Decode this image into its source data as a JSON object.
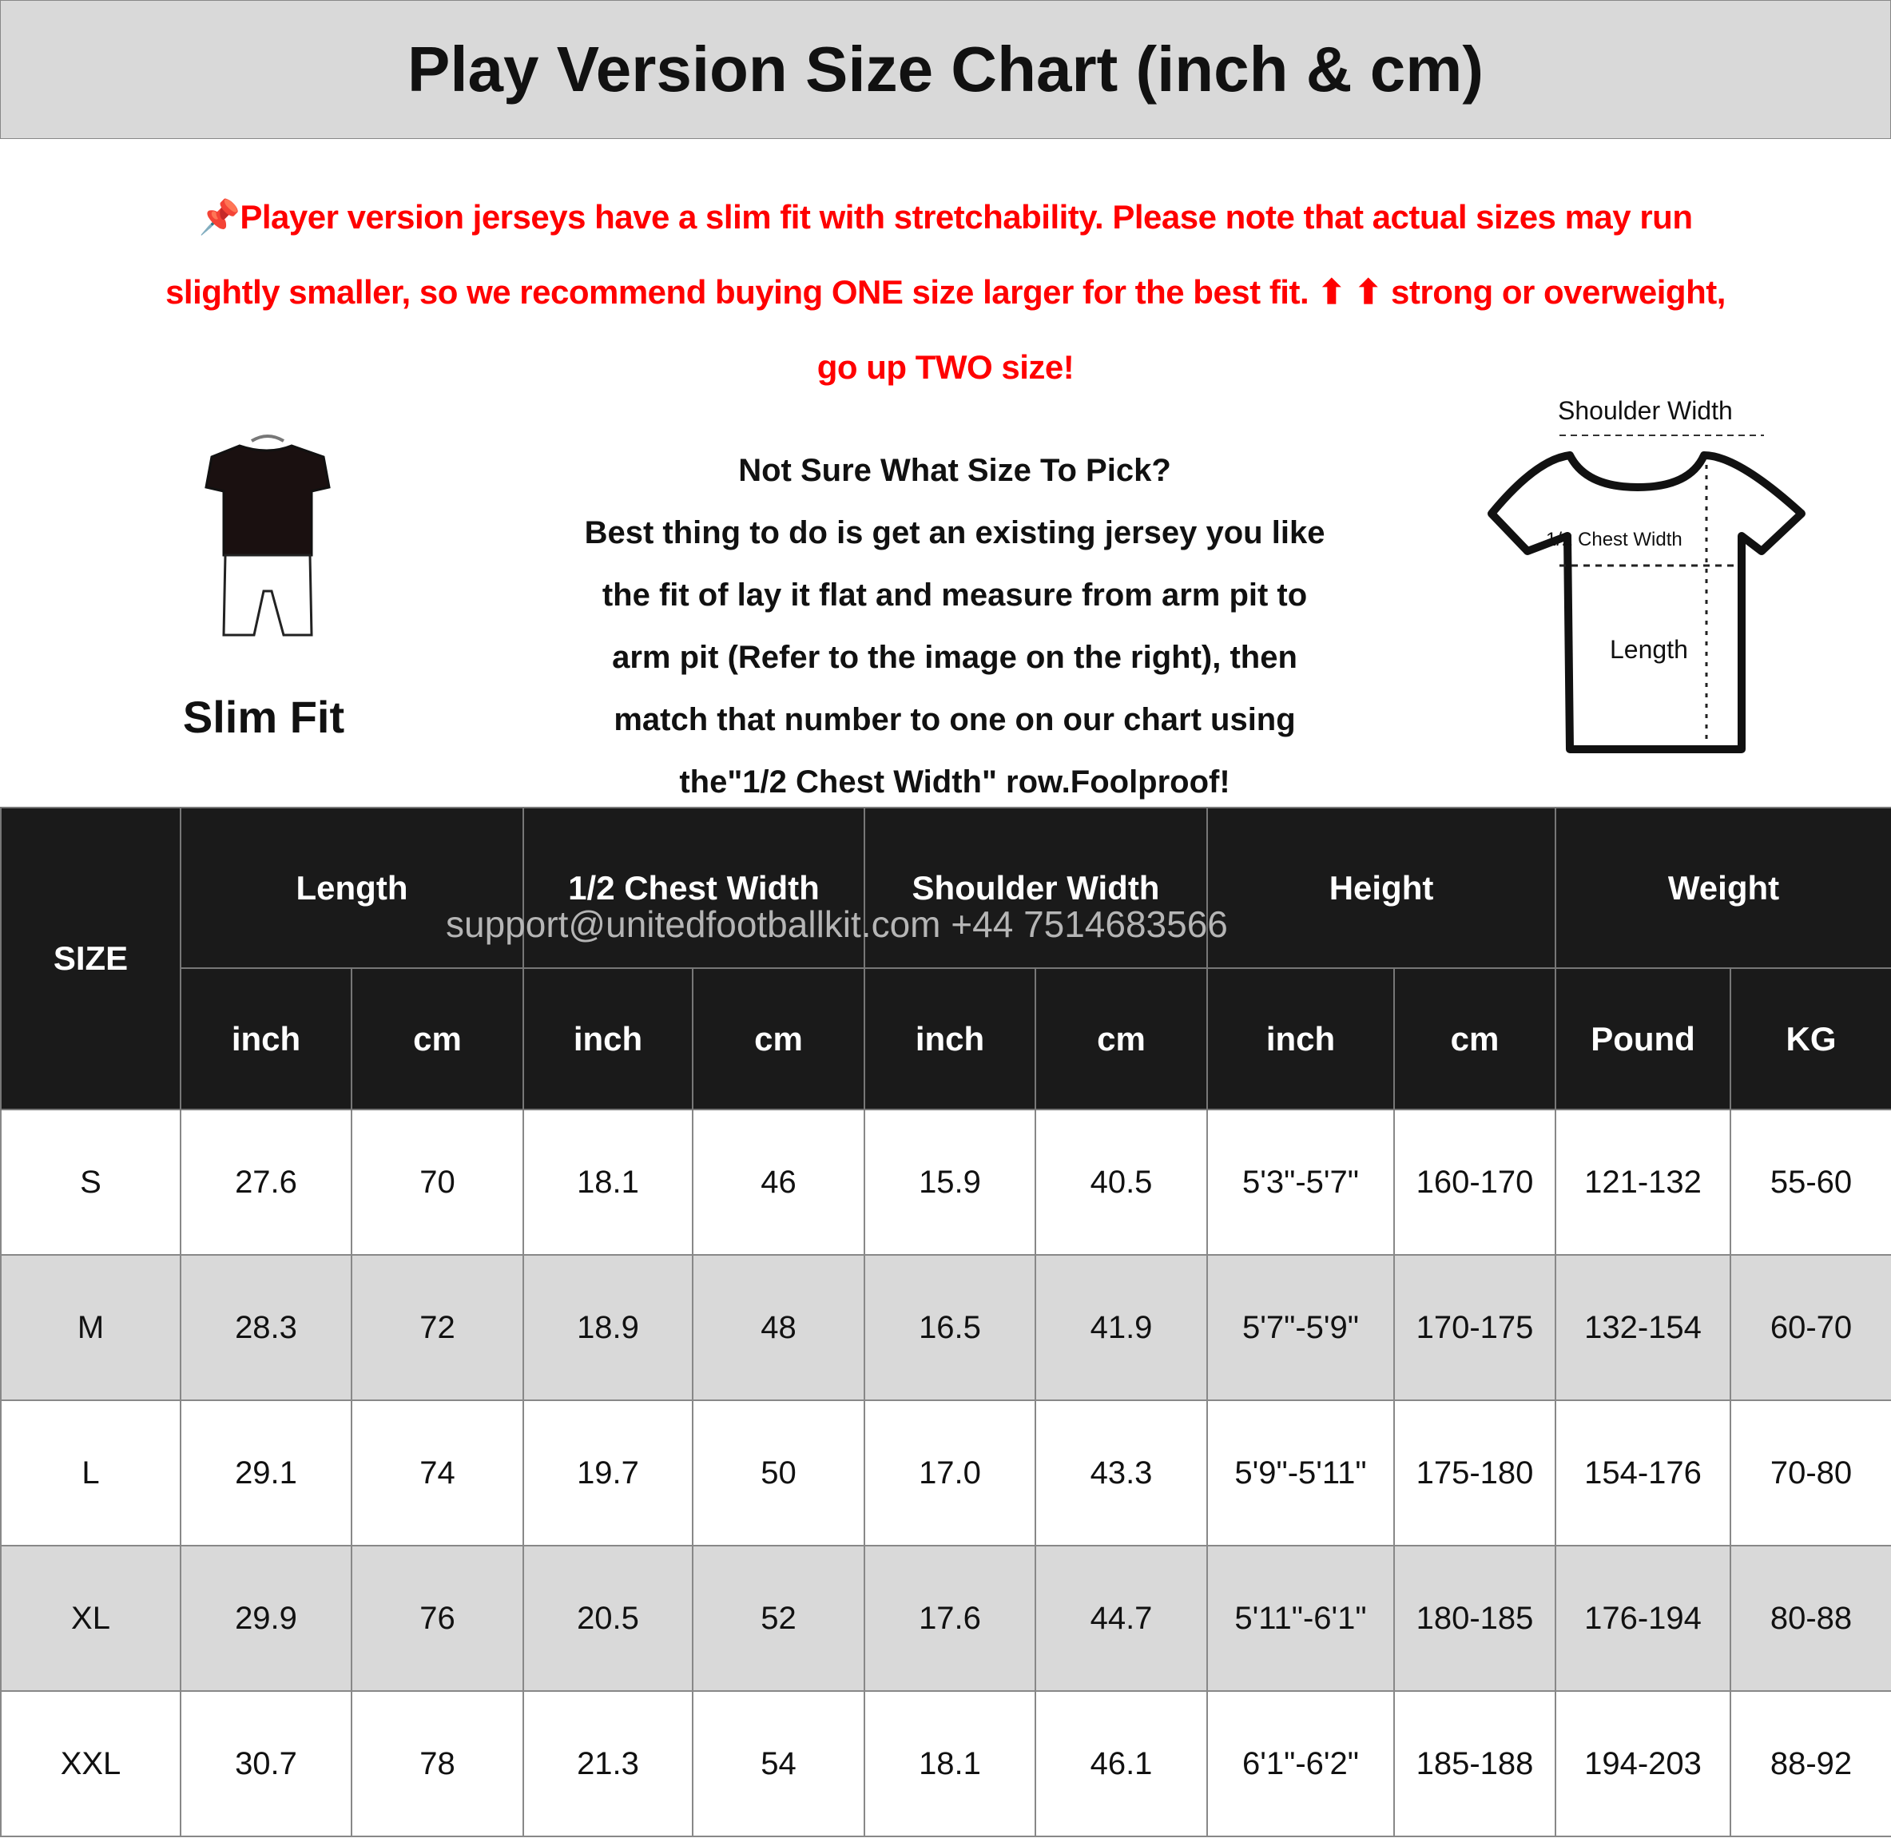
{
  "title": "Play Version Size Chart (inch & cm)",
  "note": {
    "icon": "pushpin-icon",
    "color": "#ff0000",
    "lines": [
      "Player version jerseys have a slim fit with stretchability. Please note that actual sizes may run",
      "slightly smaller, so we recommend buying ONE size larger for the best fit. ⬆ ⬆ strong or overweight,",
      "go up TWO size!"
    ]
  },
  "fit": {
    "label": "Slim Fit",
    "icon": "slim-fit-jersey-icon"
  },
  "guide": {
    "heading": "Not Sure What Size To Pick?",
    "lines": [
      "Best thing to do is get an existing jersey you like",
      "the fit of lay it flat and measure from arm pit to",
      "arm pit (Refer to the image on the right), then",
      "match that number to one on our chart using",
      "the\"1/2 Chest Width\" row.Foolproof!"
    ]
  },
  "diagram": {
    "shoulder_label": "Shoulder Width",
    "chest_label": "1/2 Chest Width",
    "length_label": "Length"
  },
  "watermark": "support@unitedfootballkit.com   +44 7514683566",
  "table": {
    "size_header": "SIZE",
    "groups": [
      "Length",
      "1/2 Chest Width",
      "Shoulder Width",
      "Height",
      "Weight"
    ],
    "units": [
      "inch",
      "cm",
      "inch",
      "cm",
      "inch",
      "cm",
      "inch",
      "cm",
      "Pound",
      "KG"
    ],
    "rows": [
      [
        "S",
        "27.6",
        "70",
        "18.1",
        "46",
        "15.9",
        "40.5",
        "5'3\"-5'7\"",
        "160-170",
        "121-132",
        "55-60"
      ],
      [
        "M",
        "28.3",
        "72",
        "18.9",
        "48",
        "16.5",
        "41.9",
        "5'7\"-5'9\"",
        "170-175",
        "132-154",
        "60-70"
      ],
      [
        "L",
        "29.1",
        "74",
        "19.7",
        "50",
        "17.0",
        "43.3",
        "5'9\"-5'11\"",
        "175-180",
        "154-176",
        "70-80"
      ],
      [
        "XL",
        "29.9",
        "76",
        "20.5",
        "52",
        "17.6",
        "44.7",
        "5'11\"-6'1\"",
        "180-185",
        "176-194",
        "80-88"
      ],
      [
        "XXL",
        "30.7",
        "78",
        "21.3",
        "54",
        "18.1",
        "46.1",
        "6'1\"-6'2\"",
        "185-188",
        "194-203",
        "88-92"
      ]
    ]
  }
}
